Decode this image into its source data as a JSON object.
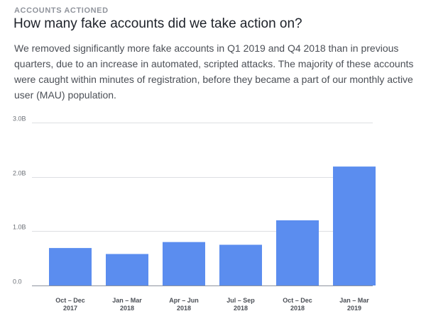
{
  "header": {
    "eyebrow": "ACCOUNTS ACTIONED",
    "title": "How many fake accounts did we take action on?",
    "description": "We removed significantly more fake accounts in Q1 2019 and Q4 2018 than in previous quarters, due to an increase in automated, scripted attacks. The majority of these accounts were caught within minutes of registration, before they became a part of our monthly active user (MAU) population."
  },
  "colors": {
    "bar": "#5b8def",
    "grid": "#dddfe2",
    "axis": "#8d949e"
  },
  "chart_data": {
    "type": "bar",
    "title": "",
    "xlabel": "",
    "ylabel": "",
    "categories": [
      [
        "Oct – Dec",
        "2017"
      ],
      [
        "Jan – Mar",
        "2018"
      ],
      [
        "Apr – Jun",
        "2018"
      ],
      [
        "Jul – Sep",
        "2018"
      ],
      [
        "Oct – Dec",
        "2018"
      ],
      [
        "Jan – Mar",
        "2019"
      ]
    ],
    "values": [
      0.69,
      0.58,
      0.8,
      0.75,
      1.2,
      2.19
    ],
    "units": "billion accounts",
    "ylim": [
      0,
      3
    ],
    "yticks": [
      0,
      1,
      2,
      3
    ],
    "ytick_labels": [
      "0.0",
      "1.0B",
      "2.0B",
      "3.0B"
    ],
    "grid": true
  }
}
